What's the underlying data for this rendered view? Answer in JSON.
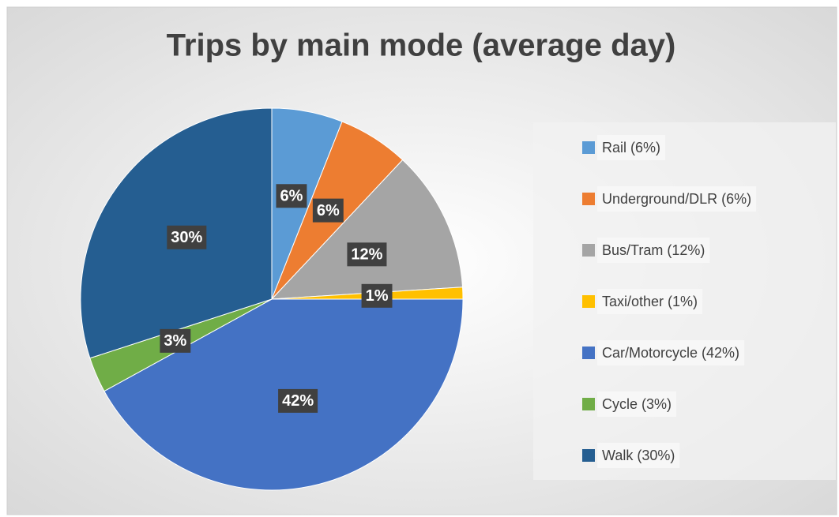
{
  "chart_data": {
    "type": "pie",
    "title": "Trips by main mode (average day)",
    "categories": [
      "Rail (6%)",
      "Underground/DLR (6%)",
      "Bus/Tram (12%)",
      "Taxi/other (1%)",
      "Car/Motorcycle (42%)",
      "Cycle (3%)",
      "Walk (30%)"
    ],
    "values": [
      6,
      6,
      12,
      1,
      42,
      3,
      30
    ],
    "value_labels": [
      "6%",
      "6%",
      "12%",
      "1%",
      "42%",
      "3%",
      "30%"
    ],
    "colors": [
      "#5b9bd5",
      "#ed7d31",
      "#a5a5a5",
      "#ffc000",
      "#4472c4",
      "#70ad47",
      "#255e91"
    ],
    "legend": "right"
  }
}
